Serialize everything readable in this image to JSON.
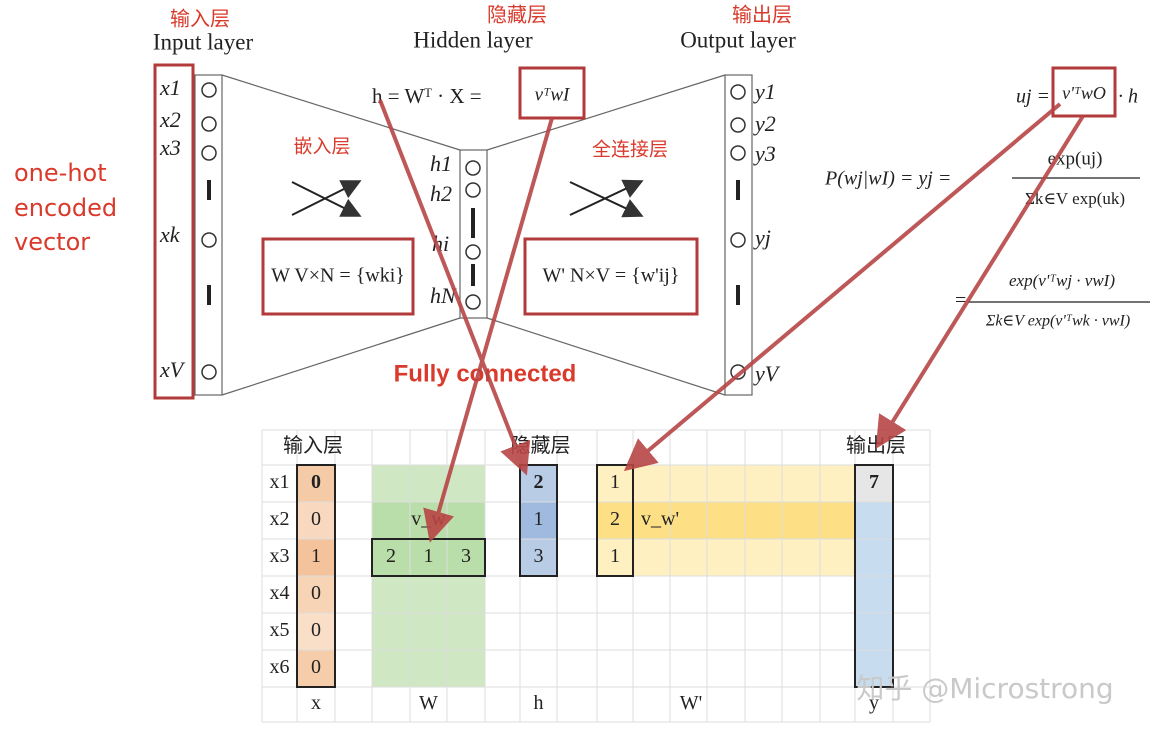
{
  "diagram": {
    "layer_cn": {
      "input": "输入层",
      "hidden": "隐藏层",
      "output": "输出层"
    },
    "layer_en": {
      "input": "Input layer",
      "hidden": "Hidden layer",
      "output": "Output layer"
    },
    "embedding": "嵌入层",
    "fully_connected_cn": "全连接层",
    "one_hot": [
      "one-hot",
      "encoded",
      "vector"
    ],
    "fully_connected": "Fully connected",
    "input_nodes": [
      "x1",
      "x2",
      "x3",
      "xk",
      "xV"
    ],
    "hidden_nodes": [
      "h1",
      "h2",
      "hi",
      "hN"
    ],
    "output_nodes": [
      "y1",
      "y2",
      "y3",
      "yj",
      "yV"
    ],
    "matrix_w": "W V×N = {wki}",
    "matrix_w_prime": "W' N×V = {w'ij}",
    "formula_h": "h = Wᵀ · X =",
    "formula_h_box": "vᵀwI",
    "formula_u": "uj =",
    "formula_u_box": "v'ᵀwO",
    "formula_u_tail": "· h",
    "formula_p": "P(wj|wI) = yj =",
    "formula_p_num": "exp(uj)",
    "formula_p_den": "Σk∈V exp(uk)",
    "formula_eq": "=",
    "formula_p2_num": "exp(v'ᵀwj · vwI)",
    "formula_p2_den": "Σk∈V exp(v'ᵀwk · vwI)"
  },
  "table": {
    "header": [
      "输入层",
      "隐藏层",
      "输出层"
    ],
    "rows": [
      "x1",
      "x2",
      "x3",
      "x4",
      "x5",
      "x6"
    ],
    "x": [
      0,
      0,
      1,
      0,
      0,
      0
    ],
    "w_row": [
      2,
      1,
      3
    ],
    "w_label": "v_w",
    "h": [
      2,
      1,
      3
    ],
    "w_prime": [
      1,
      2,
      1
    ],
    "w_prime_label": "v_w'",
    "y": 7,
    "footer": [
      "x",
      "W",
      "h",
      "W'",
      "y"
    ]
  },
  "watermark": "知乎 @Microstrong"
}
